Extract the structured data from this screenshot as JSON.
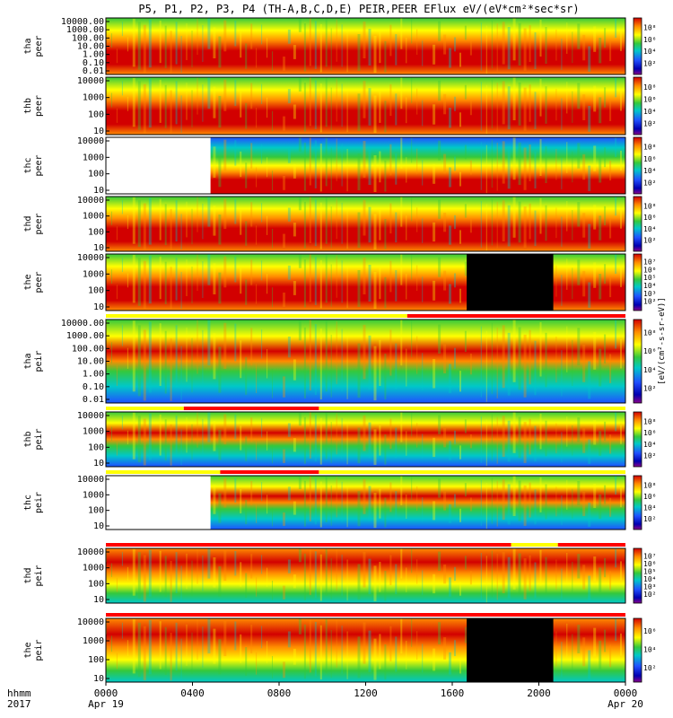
{
  "title": "P5, P1, P2, P3, P4 (TH-A,B,C,D,E) PEIR,PEER EFlux eV/(eV*cm²*sec*sr)",
  "colorbar_unit_label": "[eV/(cm²-s-sr-eV)]",
  "x_axis": {
    "left_label_1": "hhmm",
    "left_label_2": "2017",
    "tick_labels": [
      "0000",
      "0400",
      "0800",
      "1200",
      "1600",
      "2000",
      "0000"
    ],
    "date_labels": [
      "Apr 19",
      "Apr 20"
    ]
  },
  "colors": {
    "red": "#d20000",
    "orange": "#ff8c00",
    "yellow": "#ffff00",
    "green": "#34c83c",
    "cyan": "#00c8c8",
    "blue": "#2050ff",
    "darkblue": "#0000b0",
    "magenta": "#8b008b",
    "black": "#000000",
    "mode_red": "#ff0000",
    "mode_yellow": "#ffff00"
  },
  "chart_data": [
    {
      "type": "heatmap",
      "probe": "tha",
      "species": "peer",
      "ylabel_1": "tha",
      "ylabel_2": "peer",
      "y_scale": "log",
      "y_ticks": [
        "0.01",
        "0.10",
        "1.00",
        "10.00",
        "100.00",
        "1000.00",
        "10000.00"
      ],
      "x_range_hhmm": [
        "0000",
        "2400"
      ],
      "colorbar_ticks": [
        "10²",
        "10⁴",
        "10⁶",
        "10⁸"
      ],
      "profile": "sheath"
    },
    {
      "type": "heatmap",
      "probe": "thb",
      "species": "peer",
      "ylabel_1": "thb",
      "ylabel_2": "peer",
      "y_scale": "log",
      "y_ticks": [
        "10",
        "100",
        "1000",
        "10000"
      ],
      "x_range_hhmm": [
        "0000",
        "2400"
      ],
      "colorbar_ticks": [
        "10²",
        "10⁴",
        "10⁶",
        "10⁸"
      ],
      "profile": "sheath"
    },
    {
      "type": "heatmap",
      "probe": "thc",
      "species": "peer",
      "ylabel_1": "thc",
      "ylabel_2": "peer",
      "y_scale": "log",
      "y_ticks": [
        "10",
        "100",
        "1000",
        "10000"
      ],
      "x_range_hhmm": [
        "0000",
        "2400"
      ],
      "data_gap_hhmm": [
        "0000",
        "0450"
      ],
      "colorbar_ticks": [
        "10²",
        "10⁴",
        "10⁶",
        "10⁸"
      ],
      "profile": "quiet"
    },
    {
      "type": "heatmap",
      "probe": "thd",
      "species": "peer",
      "ylabel_1": "thd",
      "ylabel_2": "peer",
      "y_scale": "log",
      "y_ticks": [
        "10",
        "100",
        "1000",
        "10000"
      ],
      "x_range_hhmm": [
        "0000",
        "2400"
      ],
      "colorbar_ticks": [
        "10²",
        "10⁴",
        "10⁶",
        "10⁸"
      ],
      "profile": "sheath"
    },
    {
      "type": "heatmap",
      "probe": "the",
      "species": "peer",
      "ylabel_1": "the",
      "ylabel_2": "peer",
      "y_scale": "log",
      "y_ticks": [
        "10",
        "100",
        "1000",
        "10000"
      ],
      "x_range_hhmm": [
        "0000",
        "2400"
      ],
      "black_gap_hhmm": [
        "1640",
        "2040"
      ],
      "colorbar_ticks": [
        "10²",
        "10³",
        "10⁴",
        "10⁵",
        "10⁶",
        "10⁷"
      ],
      "profile": "sheath"
    },
    {
      "type": "heatmap",
      "probe": "tha",
      "species": "peir",
      "ylabel_1": "tha",
      "ylabel_2": "peir",
      "y_scale": "log",
      "y_ticks": [
        "0.01",
        "0.10",
        "1.00",
        "10.00",
        "100.00",
        "1000.00",
        "10000.00"
      ],
      "x_range_hhmm": [
        "0000",
        "2400"
      ],
      "colorbar_ticks": [
        "10²",
        "10⁴",
        "10⁶",
        "10⁸"
      ],
      "profile": "ion_band"
    },
    {
      "type": "heatmap",
      "probe": "thb",
      "species": "peir",
      "ylabel_1": "thb",
      "ylabel_2": "peir",
      "y_scale": "log",
      "y_ticks": [
        "10",
        "100",
        "1000",
        "10000"
      ],
      "x_range_hhmm": [
        "0000",
        "2400"
      ],
      "colorbar_ticks": [
        "10²",
        "10⁴",
        "10⁶",
        "10⁸"
      ],
      "profile": "ion_band"
    },
    {
      "type": "heatmap",
      "probe": "thc",
      "species": "peir",
      "ylabel_1": "thc",
      "ylabel_2": "peir",
      "y_scale": "log",
      "y_ticks": [
        "10",
        "100",
        "1000",
        "10000"
      ],
      "x_range_hhmm": [
        "0000",
        "2400"
      ],
      "data_gap_hhmm": [
        "0000",
        "0450"
      ],
      "colorbar_ticks": [
        "10²",
        "10⁴",
        "10⁶",
        "10⁸"
      ],
      "profile": "ion_band"
    },
    {
      "type": "heatmap",
      "probe": "thd",
      "species": "peir",
      "ylabel_1": "thd",
      "ylabel_2": "peir",
      "y_scale": "log",
      "y_ticks": [
        "10",
        "100",
        "1000",
        "10000"
      ],
      "x_range_hhmm": [
        "0000",
        "2400"
      ],
      "colorbar_ticks": [
        "10²",
        "10³",
        "10⁴",
        "10⁵",
        "10⁶",
        "10⁷"
      ],
      "profile": "ion_broad"
    },
    {
      "type": "heatmap",
      "probe": "the",
      "species": "peir",
      "ylabel_1": "the",
      "ylabel_2": "peir",
      "y_scale": "log",
      "y_ticks": [
        "10",
        "100",
        "1000",
        "10000"
      ],
      "x_range_hhmm": [
        "0000",
        "2400"
      ],
      "black_gap_hhmm": [
        "1640",
        "2040"
      ],
      "colorbar_ticks": [
        "10²",
        "10⁴",
        "10⁶"
      ],
      "profile": "ion_broad"
    }
  ]
}
